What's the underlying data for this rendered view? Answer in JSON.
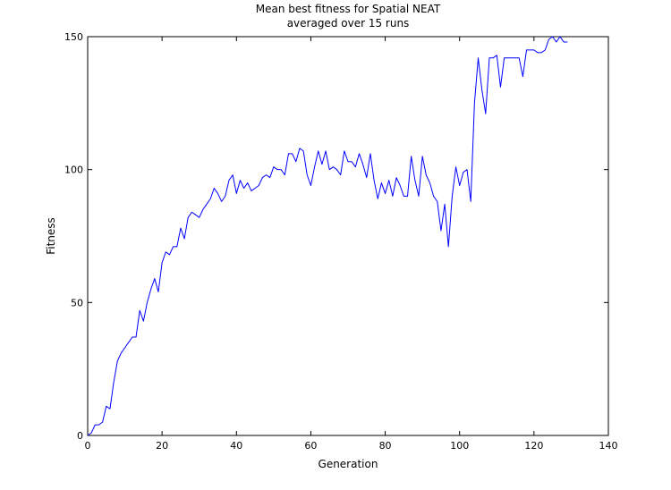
{
  "chart_data": {
    "type": "line",
    "title": "Mean best fitness for Spatial NEAT",
    "subtitle": "averaged over 15 runs",
    "xlabel": "Generation",
    "ylabel": "Fitness",
    "xlim": [
      0,
      140
    ],
    "ylim": [
      0,
      150
    ],
    "xticks": [
      0,
      20,
      40,
      60,
      80,
      100,
      120,
      140
    ],
    "yticks": [
      0,
      50,
      100,
      150
    ],
    "grid": false,
    "legend": "none",
    "series": [
      {
        "color": "#0000ff",
        "x": [
          0,
          1,
          2,
          3,
          4,
          5,
          6,
          7,
          8,
          9,
          10,
          11,
          12,
          13,
          14,
          15,
          16,
          17,
          18,
          19,
          20,
          21,
          22,
          23,
          24,
          25,
          26,
          27,
          28,
          29,
          30,
          31,
          32,
          33,
          34,
          35,
          36,
          37,
          38,
          39,
          40,
          41,
          42,
          43,
          44,
          45,
          46,
          47,
          48,
          49,
          50,
          51,
          52,
          53,
          54,
          55,
          56,
          57,
          58,
          59,
          60,
          61,
          62,
          63,
          64,
          65,
          66,
          67,
          68,
          69,
          70,
          71,
          72,
          73,
          74,
          75,
          76,
          77,
          78,
          79,
          80,
          81,
          82,
          83,
          84,
          85,
          86,
          87,
          88,
          89,
          90,
          91,
          92,
          93,
          94,
          95,
          96,
          97,
          98,
          99,
          100,
          101,
          102,
          103,
          104,
          105,
          106,
          107,
          108,
          109,
          110,
          111,
          112,
          113,
          114,
          115,
          116,
          117,
          118,
          119,
          120,
          121,
          122,
          123,
          124,
          125,
          126,
          127,
          128,
          129
        ],
        "y": [
          0,
          1,
          4,
          4,
          5,
          11,
          10,
          20,
          28,
          31,
          33,
          35,
          37,
          37,
          47,
          43,
          50,
          55,
          59,
          54,
          65,
          69,
          68,
          71,
          71,
          78,
          74,
          82,
          84,
          83,
          82,
          85,
          87,
          89,
          93,
          91,
          88,
          90,
          96,
          98,
          91,
          96,
          93,
          95,
          92,
          93,
          94,
          97,
          98,
          97,
          101,
          100,
          100,
          98,
          106,
          106,
          103,
          108,
          107,
          98,
          94,
          101,
          107,
          102,
          107,
          100,
          101,
          100,
          98,
          107,
          103,
          103,
          101,
          106,
          102,
          97,
          106,
          96,
          89,
          95,
          91,
          96,
          90,
          97,
          94,
          90,
          90,
          105,
          96,
          90,
          105,
          98,
          95,
          90,
          88,
          77,
          87,
          71,
          90,
          101,
          94,
          99,
          100,
          88,
          125,
          142,
          130,
          121,
          142,
          142,
          143,
          131,
          142,
          142,
          142,
          142,
          142,
          135,
          145,
          145,
          145,
          144,
          144,
          145,
          149,
          150,
          148,
          150,
          148,
          148
        ]
      }
    ]
  }
}
